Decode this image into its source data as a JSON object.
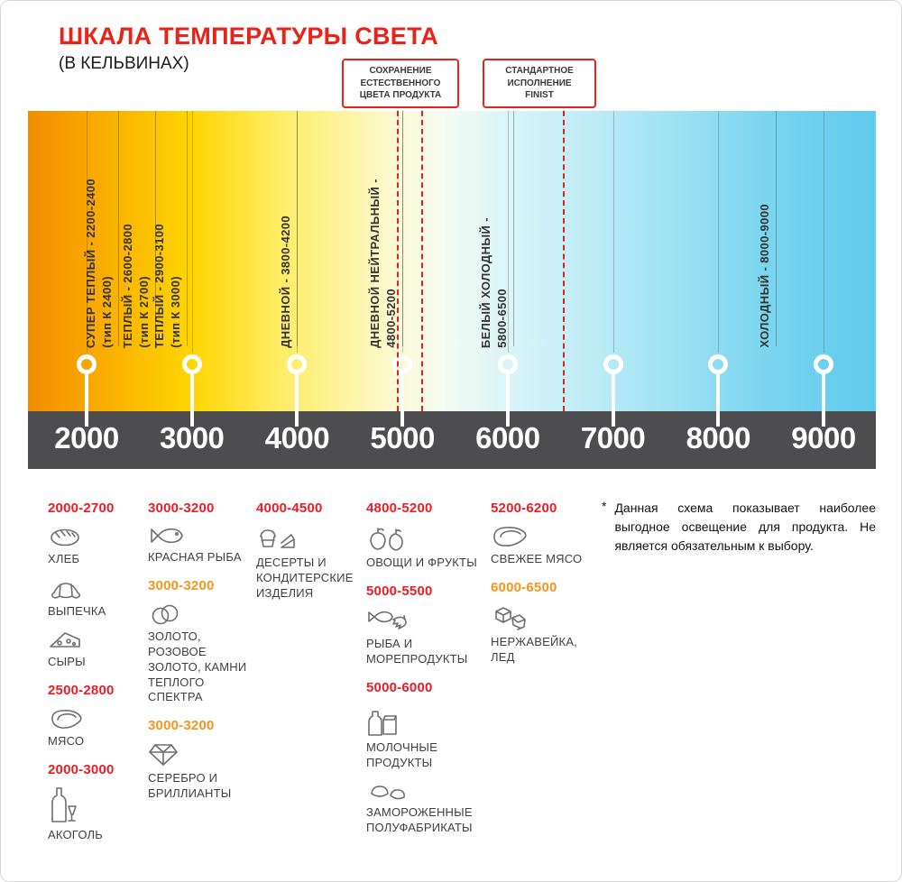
{
  "page": {
    "title": "ШКАЛА ТЕМПЕРАТУРЫ СВЕТА",
    "subtitle": "(В КЕЛЬВИНАХ)"
  },
  "callouts": [
    {
      "text": "СОХРАНЕНИЕ\nЕСТЕСТВЕННОГО\nЦВЕТА ПРОДУКТА",
      "lines_at_kelvin": [
        4950,
        5180
      ]
    },
    {
      "text": "СТАНДАРТНОЕ\nИСПОЛНЕНИЕ\nFINIST",
      "lines_at_kelvin": [
        6520
      ]
    }
  ],
  "scale": {
    "unit": "K",
    "min": 2000,
    "max": 9000,
    "ticks": [
      2000,
      3000,
      4000,
      5000,
      6000,
      7000,
      8000,
      9000
    ],
    "zones": [
      {
        "label": "СУПЕР ТЕПЛЫЙ - 2200-2400",
        "sub": "(тип К 2400)",
        "at": 2300
      },
      {
        "label": "ТЕПЛЫЙ - 2600-2800",
        "sub": "(тип К 2700)",
        "at": 2650
      },
      {
        "label": "ТЕПЛЫЙ - 2900-3100",
        "sub": "(тип К 3000)",
        "at": 2950
      },
      {
        "label": "ДНЕВНОЙ - 3800-4200",
        "sub": "",
        "at": 4000
      },
      {
        "label": "ДНЕВНОЙ НЕЙТРАЛЬНЫЙ -",
        "sub": "4800-5200",
        "at": 5000
      },
      {
        "label": "БЕЛЫЙ ХОЛОДНЫЙ -",
        "sub": "5800-6500",
        "at": 6050
      },
      {
        "label": "ХОЛОДНЫЙ - 8000-9000",
        "sub": "",
        "at": 8550
      }
    ]
  },
  "legend": {
    "columns": [
      {
        "blocks": [
          {
            "range": "2000-2700",
            "color": "red",
            "items": [
              {
                "icon": "bread-icon",
                "label": "ХЛЕБ"
              },
              {
                "icon": "croissant-icon",
                "label": "ВЫПЕЧКА"
              },
              {
                "icon": "cheese-icon",
                "label": "СЫРЫ"
              }
            ]
          },
          {
            "range": "2500-2800",
            "color": "red",
            "items": [
              {
                "icon": "meat-icon",
                "label": "МЯСО"
              }
            ]
          },
          {
            "range": "2000-3000",
            "color": "red",
            "items": [
              {
                "icon": "bottle-icon",
                "label": "АКОГОЛЬ"
              }
            ]
          }
        ]
      },
      {
        "blocks": [
          {
            "range": "3000-3200",
            "color": "red",
            "items": [
              {
                "icon": "fish-icon",
                "label": "КРАСНАЯ РЫБА"
              }
            ]
          },
          {
            "range": "3000-3200",
            "color": "orange",
            "items": [
              {
                "icon": "rings-icon",
                "label": "ЗОЛОТО, РОЗОВОЕ ЗОЛОТО, КАМНИ ТЕПЛОГО СПЕКТРА"
              }
            ]
          },
          {
            "range": "3000-3200",
            "color": "orange",
            "items": [
              {
                "icon": "diamond-icon",
                "label": "СЕРЕБРО И БРИЛЛИАНТЫ"
              }
            ]
          }
        ]
      },
      {
        "blocks": [
          {
            "range": "4000-4500",
            "color": "red",
            "items": [
              {
                "icon": "dessert-icon",
                "label": "ДЕСЕРТЫ И КОНДИТЕРСКИЕ ИЗДЕЛИЯ"
              }
            ]
          }
        ]
      },
      {
        "blocks": [
          {
            "range": "4800-5200",
            "color": "red",
            "items": [
              {
                "icon": "vegetables-icon",
                "label": "ОВОЩИ И ФРУКТЫ"
              }
            ]
          },
          {
            "range": "5000-5500",
            "color": "red",
            "items": [
              {
                "icon": "seafood-icon",
                "label": "РЫБА И МОРЕПРОДУКТЫ"
              }
            ]
          },
          {
            "range": "5000-6000",
            "color": "red",
            "items": [
              {
                "icon": "dairy-icon",
                "label": "МОЛОЧНЫЕ ПРОДУКТЫ"
              },
              {
                "icon": "frozen-icon",
                "label": "ЗАМОРОЖЕННЫЕ ПОЛУФАБРИКАТЫ"
              }
            ]
          }
        ]
      },
      {
        "blocks": [
          {
            "range": "5200-6200",
            "color": "red",
            "items": [
              {
                "icon": "steak-icon",
                "label": "СВЕЖЕЕ МЯСО"
              }
            ]
          },
          {
            "range": "6000-6500",
            "color": "orange",
            "items": [
              {
                "icon": "ice-icon",
                "label": "НЕРЖАВЕЙКА, ЛЕД"
              }
            ]
          }
        ]
      }
    ]
  },
  "footnote": {
    "marker": "*",
    "text": "Данная схема показывает наиболее выгодное освещение для продукта. Не является обязательным к выбору."
  },
  "colors": {
    "accent_red": "#ed1c24",
    "accent_orange": "#f7941d",
    "axis_bar": "#4d4d4f"
  }
}
